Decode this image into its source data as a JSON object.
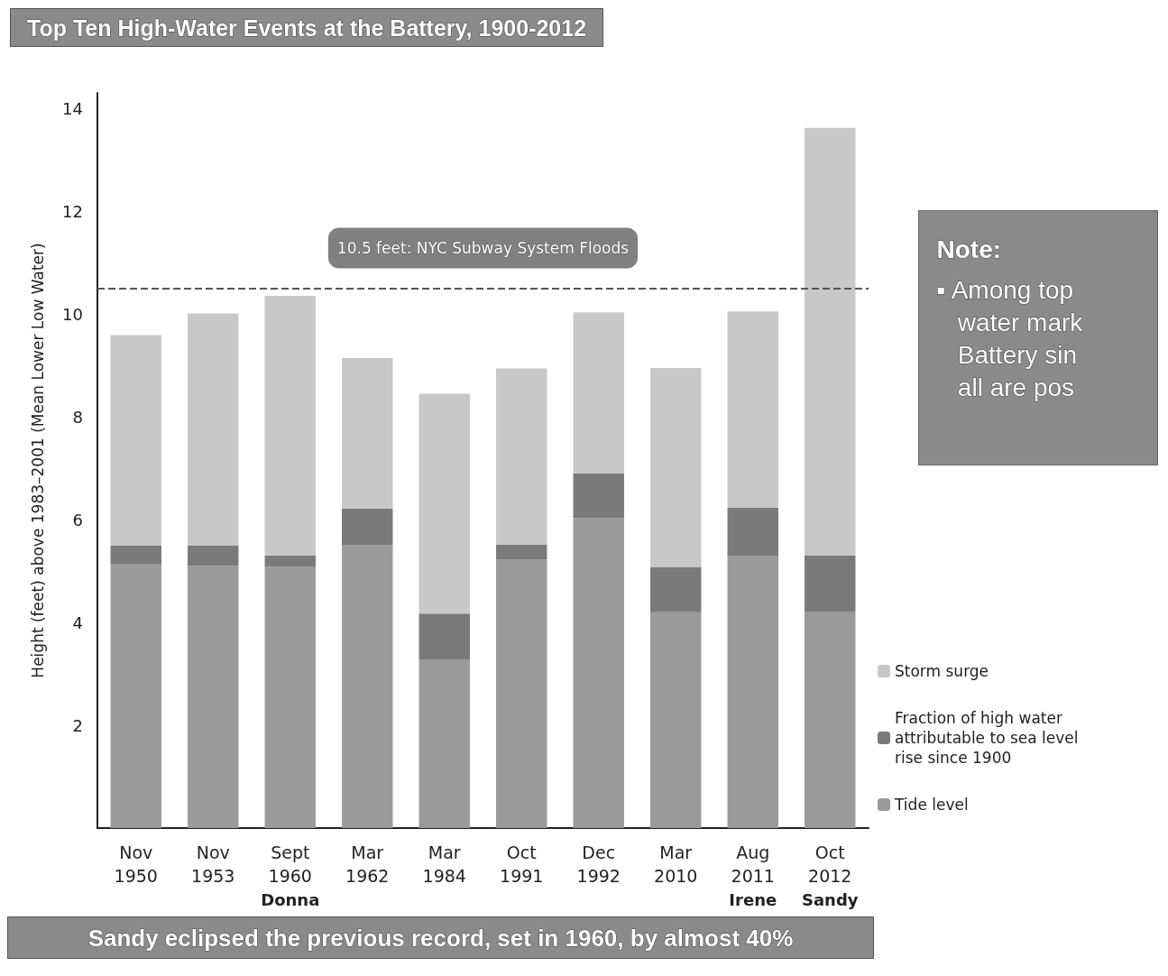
{
  "chart_data": {
    "type": "bar",
    "title": "Top Ten High-Water Events at the Battery, 1900-2012",
    "ylabel": "Height (feet) above 1983–2001 (Mean Lower Low Water)",
    "categories": [
      "Nov\n1950",
      "Nov\n1953",
      "Sept\n1960\nDonna",
      "Mar\n1962",
      "Mar\n1984",
      "Oct\n1991",
      "Dec\n1992",
      "Mar\n2010",
      "Aug\n2011\nIrene",
      "Oct\n2012\nSandy"
    ],
    "stacked": true,
    "series": [
      {
        "name": "Tide level",
        "color": "#9a9a9a",
        "values": [
          5.13,
          5.1,
          5.08,
          5.51,
          3.28,
          5.22,
          6.03,
          4.2,
          5.3,
          4.21
        ]
      },
      {
        "name": "Fraction of high water attributable to sea level rise since 1900",
        "color": "#7a7a7a",
        "values": [
          0.37,
          0.4,
          0.22,
          0.7,
          0.89,
          0.3,
          0.87,
          0.88,
          0.93,
          1.09
        ]
      },
      {
        "name": "Storm surge",
        "color": "#c8c8c8",
        "values": [
          4.09,
          4.51,
          5.05,
          2.93,
          4.28,
          3.42,
          3.13,
          3.87,
          3.82,
          8.32
        ]
      }
    ],
    "ylim": [
      0,
      14.3
    ],
    "yticks": [
      2,
      4,
      6,
      8,
      10,
      12,
      14
    ],
    "grid": false,
    "legend": "right",
    "ref_lines": [
      {
        "axis": "y",
        "value": 10.5,
        "label": "10.5 feet: NYC Subway System Floods",
        "line_style": "dashed",
        "color": "#555555"
      }
    ],
    "annotations": [
      "Sandy eclipsed the previous record, set in 1960, by almost 40%",
      "Note:",
      "▪ Among top\n   water mark\n   Battery sin\n   all are pos"
    ]
  }
}
